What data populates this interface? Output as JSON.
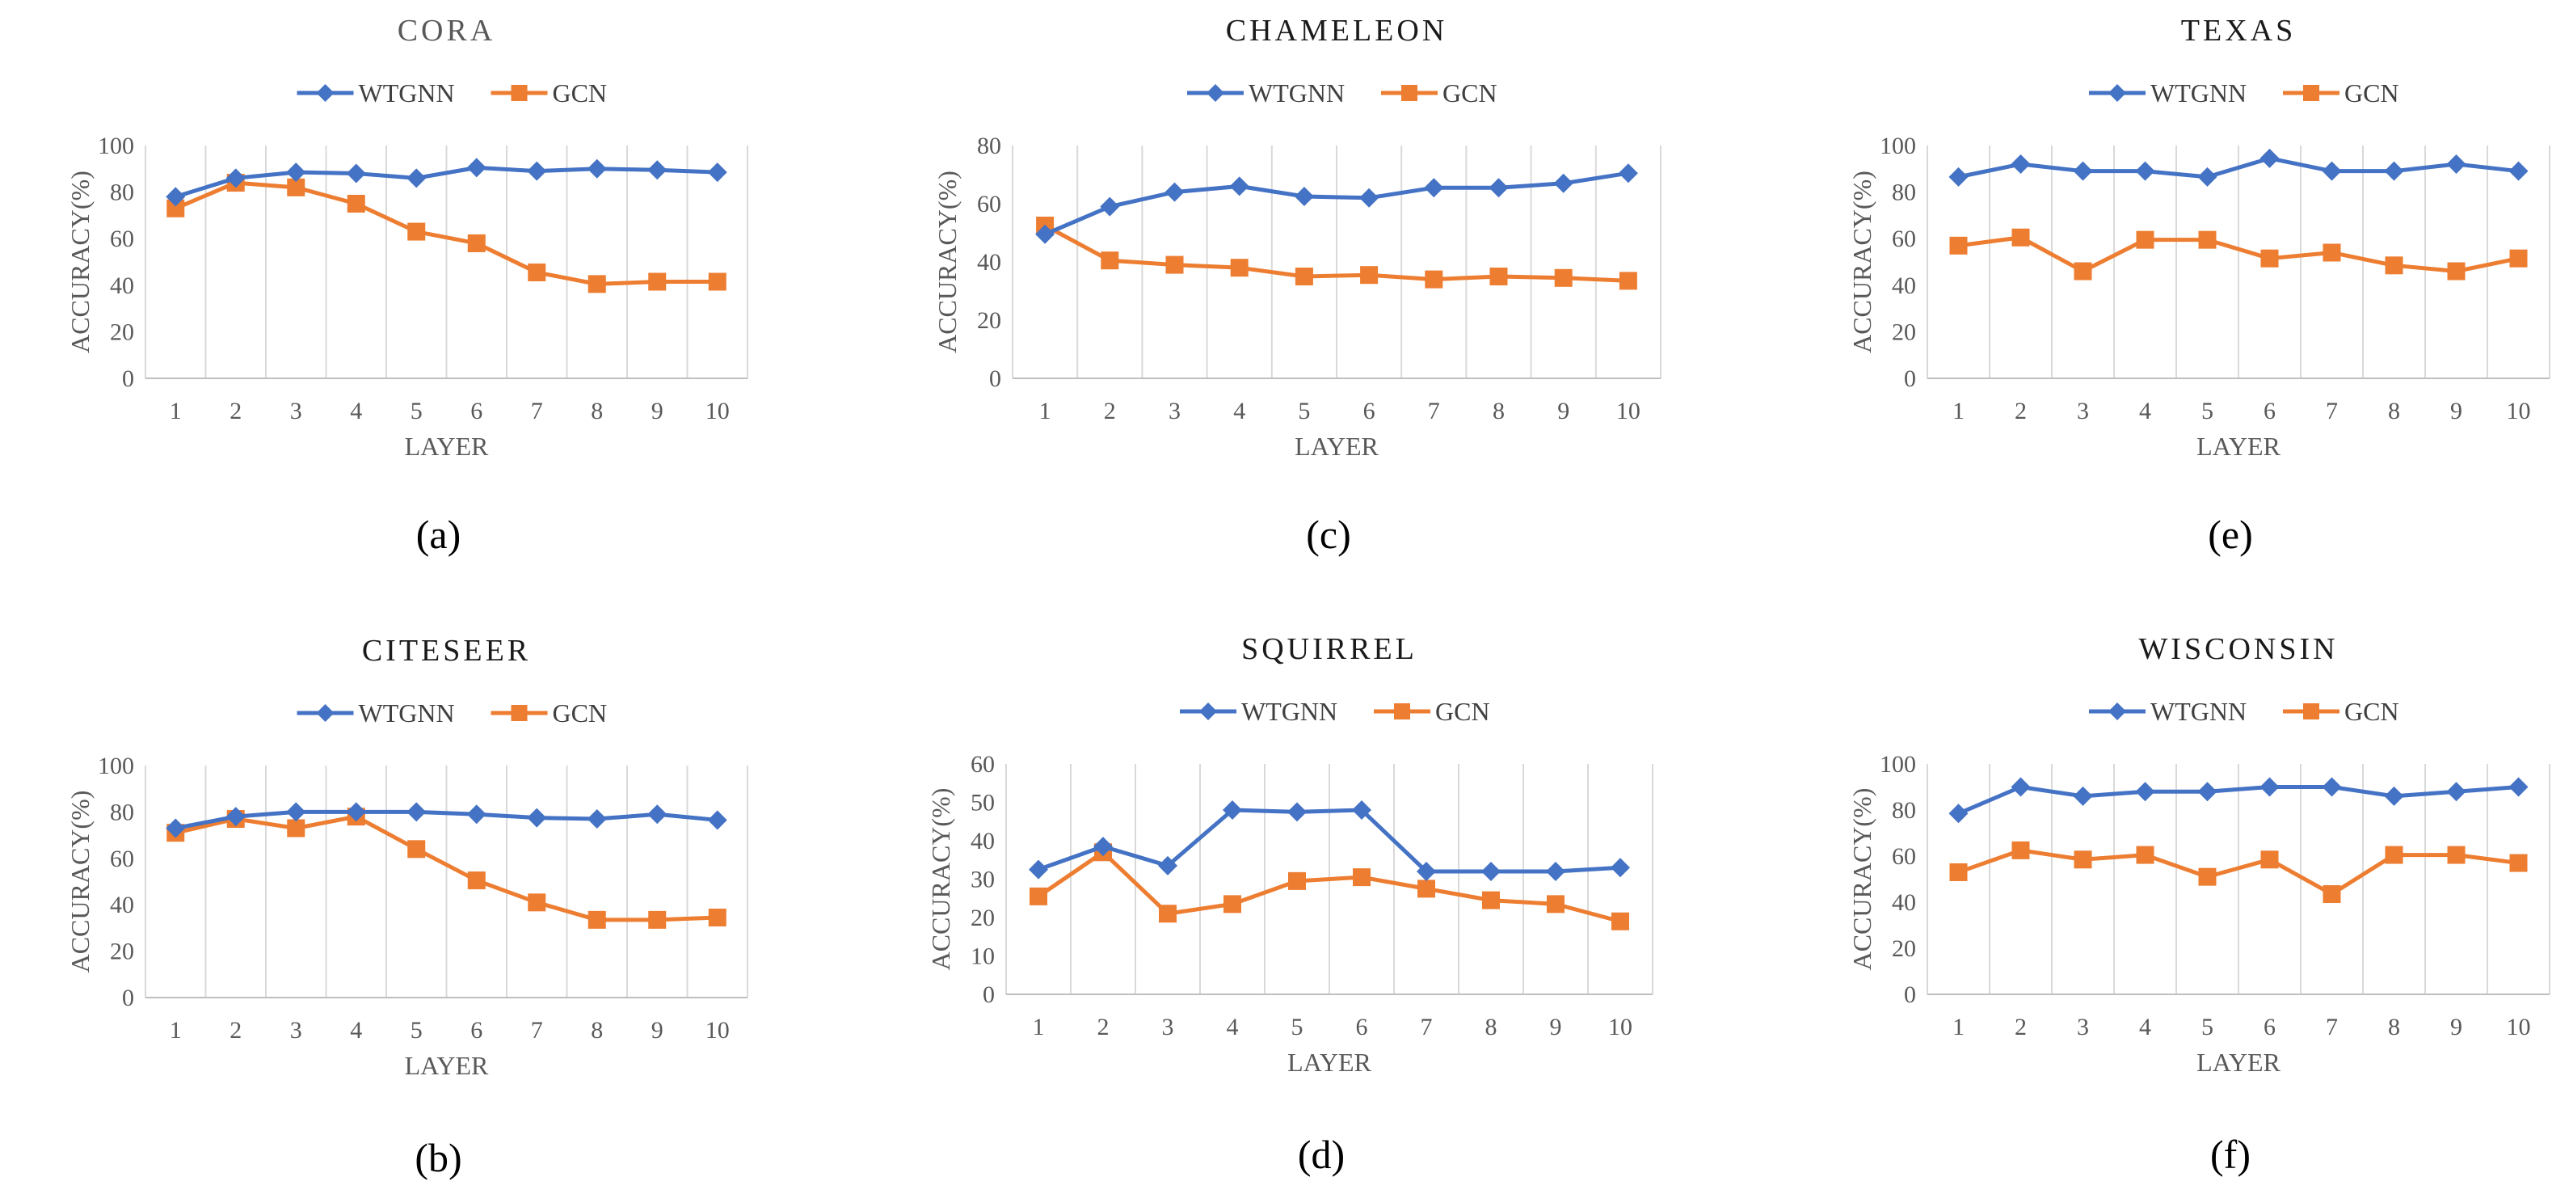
{
  "colors": {
    "wtgnn": "#4472C4",
    "gcn": "#ED7D31",
    "grid": "#d9d9d9",
    "axis": "#bfbfbf"
  },
  "chart_data": [
    {
      "type": "line",
      "title": "CORA",
      "caption": "(a)",
      "xlabel": "LAYER",
      "ylabel": "ACCURACY(%)",
      "categories": [
        "1",
        "2",
        "3",
        "4",
        "5",
        "6",
        "7",
        "8",
        "9",
        "10"
      ],
      "ylim": [
        0,
        100
      ],
      "yticks": [
        "0",
        "20",
        "40",
        "60",
        "80",
        "100"
      ],
      "series": [
        {
          "name": "WTGNN",
          "marker": "diamond",
          "values": [
            78,
            86,
            88.5,
            88,
            86,
            90.5,
            89,
            90,
            89.5,
            88.5
          ]
        },
        {
          "name": "GCN",
          "marker": "square",
          "values": [
            73,
            84,
            82,
            75,
            63,
            58,
            45.5,
            40.5,
            41.5,
            41.5
          ]
        }
      ]
    },
    {
      "type": "line",
      "title": "CITESEER",
      "caption": "(b)",
      "xlabel": "LAYER",
      "ylabel": "ACCURACY(%)",
      "categories": [
        "1",
        "2",
        "3",
        "4",
        "5",
        "6",
        "7",
        "8",
        "9",
        "10"
      ],
      "ylim": [
        0,
        100
      ],
      "yticks": [
        "0",
        "20",
        "40",
        "60",
        "80",
        "100"
      ],
      "series": [
        {
          "name": "WTGNN",
          "marker": "diamond",
          "values": [
            73,
            78,
            80,
            80,
            80,
            79,
            77.5,
            77,
            79,
            76.5
          ]
        },
        {
          "name": "GCN",
          "marker": "square",
          "values": [
            71,
            77,
            73,
            78,
            64,
            50.5,
            41,
            33.5,
            33.5,
            34.5
          ]
        }
      ]
    },
    {
      "type": "line",
      "title": "CHAMELEON",
      "caption": "(c)",
      "xlabel": "LAYER",
      "ylabel": "ACCURACY(%)",
      "categories": [
        "1",
        "2",
        "3",
        "4",
        "5",
        "6",
        "7",
        "8",
        "9",
        "10"
      ],
      "ylim": [
        0,
        80
      ],
      "yticks": [
        "0",
        "20",
        "40",
        "60",
        "80"
      ],
      "series": [
        {
          "name": "WTGNN",
          "marker": "diamond",
          "values": [
            49.5,
            59,
            64,
            66,
            62.5,
            62,
            65.5,
            65.5,
            67,
            70.5
          ]
        },
        {
          "name": "GCN",
          "marker": "square",
          "values": [
            52.5,
            40.5,
            39,
            38,
            35,
            35.5,
            34,
            35,
            34.5,
            33.5
          ]
        }
      ]
    },
    {
      "type": "line",
      "title": "SQUIRREL",
      "caption": "(d)",
      "xlabel": "LAYER",
      "ylabel": "ACCURACY(%)",
      "categories": [
        "1",
        "2",
        "3",
        "4",
        "5",
        "6",
        "7",
        "8",
        "9",
        "10"
      ],
      "ylim": [
        0,
        60
      ],
      "yticks": [
        "0",
        "10",
        "20",
        "30",
        "40",
        "50",
        "60"
      ],
      "series": [
        {
          "name": "WTGNN",
          "marker": "diamond",
          "values": [
            32.5,
            38.5,
            33.5,
            48,
            47.5,
            48,
            32,
            32,
            32,
            33
          ]
        },
        {
          "name": "GCN",
          "marker": "square",
          "values": [
            25.5,
            37,
            21,
            23.5,
            29.5,
            30.5,
            27.5,
            24.5,
            23.5,
            19
          ]
        }
      ]
    },
    {
      "type": "line",
      "title": "TEXAS",
      "caption": "(e)",
      "xlabel": "LAYER",
      "ylabel": "ACCURACY(%)",
      "categories": [
        "1",
        "2",
        "3",
        "4",
        "5",
        "6",
        "7",
        "8",
        "9",
        "10"
      ],
      "ylim": [
        0,
        100
      ],
      "yticks": [
        "0",
        "20",
        "40",
        "60",
        "80",
        "100"
      ],
      "series": [
        {
          "name": "WTGNN",
          "marker": "diamond",
          "values": [
            86.5,
            92,
            89,
            89,
            86.5,
            94.5,
            89,
            89,
            92,
            89
          ]
        },
        {
          "name": "GCN",
          "marker": "square",
          "values": [
            57,
            60.5,
            46,
            59.5,
            59.5,
            51.5,
            54,
            48.5,
            46,
            51.5
          ]
        }
      ]
    },
    {
      "type": "line",
      "title": "WISCONSIN",
      "caption": "(f)",
      "xlabel": "LAYER",
      "ylabel": "ACCURACY(%)",
      "categories": [
        "1",
        "2",
        "3",
        "4",
        "5",
        "6",
        "7",
        "8",
        "9",
        "10"
      ],
      "ylim": [
        0,
        100
      ],
      "yticks": [
        "0",
        "20",
        "40",
        "60",
        "80",
        "100"
      ],
      "series": [
        {
          "name": "WTGNN",
          "marker": "diamond",
          "values": [
            78.5,
            90,
            86,
            88,
            88,
            90,
            90,
            86,
            88,
            90
          ]
        },
        {
          "name": "GCN",
          "marker": "square",
          "values": [
            53,
            62.5,
            58.5,
            60.5,
            51,
            58.5,
            43.5,
            60.5,
            60.5,
            57
          ]
        }
      ]
    }
  ]
}
